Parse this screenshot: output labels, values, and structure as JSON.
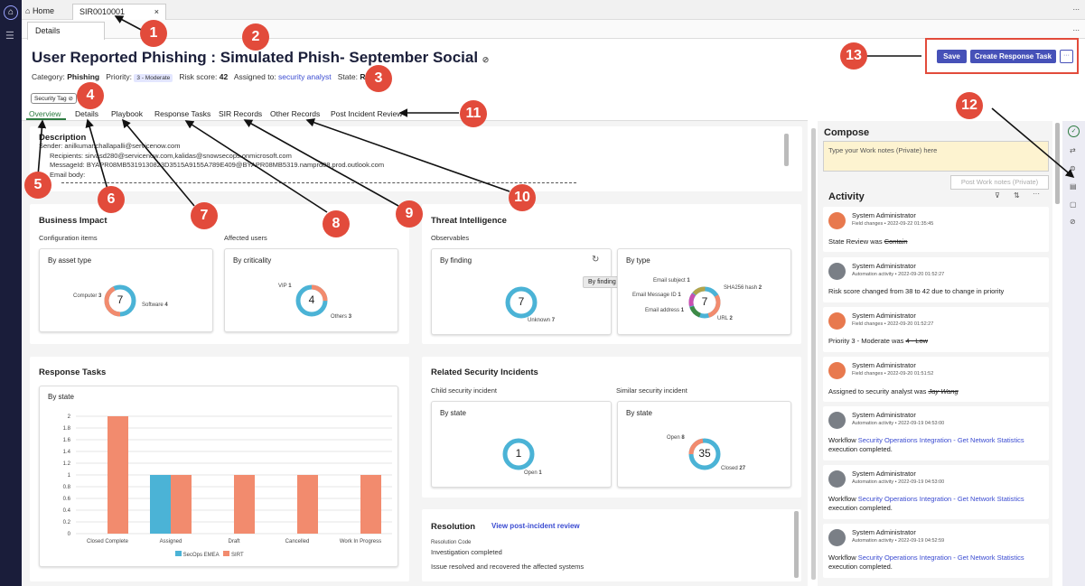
{
  "tabs": {
    "home": "Home",
    "record": "SIR0010001",
    "close": "×",
    "details": "Details",
    "more": "..."
  },
  "header": {
    "title": "User Reported Phishing : Simulated Phish- September Social",
    "category_label": "Category:",
    "category": "Phishing",
    "priority_label": "Priority:",
    "priority": "3 - Moderate",
    "risk_label": "Risk score:",
    "risk": "42",
    "assigned_label": "Assigned to:",
    "assigned": "security analyst",
    "state_label": "State:",
    "state": "Review",
    "tag": "Security Tag",
    "save": "Save",
    "create_task": "Create Response Task",
    "more": "···"
  },
  "record_tabs": [
    "Overview",
    "Details",
    "Playbook",
    "Response Tasks",
    "SIR Records",
    "Other Records",
    "Post Incident Review"
  ],
  "description": {
    "title": "Description",
    "line1": "Sender: anilkumar.challapalli@servicenow.com",
    "line2": "Recipients: sirvasd280@servicenow.com,kalidas@snowsecops.onmicrosoft.com",
    "line3": "MessageId: BYAPR08MB5319130823D3515A9155A789E409@BYAPR08MB5319.namprd08.prod.outlook.com",
    "line4": "Email body:"
  },
  "business_impact": {
    "title": "Business Impact",
    "config_label": "Configuration items",
    "users_label": "Affected users",
    "asset": {
      "title": "By asset type",
      "total": "7",
      "a_name": "Computer",
      "a_val": "3",
      "b_name": "Software",
      "b_val": "4"
    },
    "crit": {
      "title": "By criticality",
      "total": "4",
      "a_name": "VIP",
      "a_val": "1",
      "b_name": "Others",
      "b_val": "3"
    }
  },
  "threat": {
    "title": "Threat Intelligence",
    "obs_label": "Observables",
    "tooltip": "By finding",
    "finding": {
      "title": "By finding",
      "total": "7",
      "a_name": "Unknown",
      "a_val": "7"
    },
    "type": {
      "title": "By type",
      "total": "7",
      "s1": "Email subject",
      "v1": "1",
      "s2": "Email Message ID",
      "v2": "1",
      "s3": "Email address",
      "v3": "1",
      "s4": "SHA256 hash",
      "v4": "2",
      "s5": "URL",
      "v5": "2"
    }
  },
  "response_tasks": {
    "title": "Response Tasks",
    "card_title": "By state",
    "legend": [
      "SecOps EMEA",
      "SIRT"
    ]
  },
  "related": {
    "title": "Related Security Incidents",
    "child_label": "Child security incident",
    "similar_label": "Similar security incident",
    "child": {
      "title": "By state",
      "total": "1",
      "a_name": "Open",
      "a_val": "1"
    },
    "similar": {
      "title": "By state",
      "total": "35",
      "a_name": "Open",
      "a_val": "8",
      "b_name": "Closed",
      "b_val": "27"
    }
  },
  "resolution": {
    "title": "Resolution",
    "link": "View post-incident review",
    "code_label": "Resolution Code",
    "code": "Investigation completed",
    "notes": "Issue resolved and recovered the affected systems"
  },
  "compose": {
    "title": "Compose",
    "placeholder": "Type your Work notes (Private) here",
    "post": "Post Work notes (Private)"
  },
  "activity": {
    "title": "Activity",
    "items": [
      {
        "name": "System Administrator",
        "sub": "Field changes • 2022-09-22 01:35:45",
        "pre": "State  Review was ",
        "old": "Contain",
        "link": "",
        "post": ""
      },
      {
        "name": "System Administrator",
        "sub": "Automation activity • 2022-09-20 01:52:27",
        "pre": "Risk score changed from 38 to 42 due to change in priority",
        "old": "",
        "link": "",
        "post": ""
      },
      {
        "name": "System Administrator",
        "sub": "Field changes • 2022-09-20 01:52:27",
        "pre": "Priority  3 - Moderate was ",
        "old": "4 - Low",
        "link": "",
        "post": ""
      },
      {
        "name": "System Administrator",
        "sub": "Field changes • 2022-09-20 01:51:52",
        "pre": "Assigned to  security analyst was ",
        "old": "Jay Wang",
        "link": "",
        "post": ""
      },
      {
        "name": "System Administrator",
        "sub": "Automation activity • 2022-09-19 04:53:00",
        "pre": "Workflow ",
        "old": "",
        "link": "Security Operations Integration - Get Network Statistics",
        "post": "execution completed."
      },
      {
        "name": "System Administrator",
        "sub": "Automation activity • 2022-09-19 04:53:00",
        "pre": "Workflow ",
        "old": "",
        "link": "Security Operations Integration - Get Network Statistics",
        "post": "execution completed."
      },
      {
        "name": "System Administrator",
        "sub": "Automation activity • 2022-09-19 04:52:59",
        "pre": "Workflow ",
        "old": "",
        "link": "Security Operations Integration - Get Network Statistics",
        "post": "execution completed."
      }
    ]
  },
  "callouts": [
    "1",
    "2",
    "3",
    "4",
    "5",
    "6",
    "7",
    "8",
    "9",
    "10",
    "11",
    "12",
    "13"
  ],
  "colors": {
    "accent": "#4651b8",
    "callout": "#e24b3b",
    "blue": "#4bb3d6",
    "salmon": "#f28b6e",
    "brand": "#1a1d3a"
  },
  "chart_data": {
    "type": "bar",
    "title": "By state",
    "categories": [
      "Closed Complete",
      "Assigned",
      "Draft",
      "Cancelled",
      "Work In Progress"
    ],
    "series": [
      {
        "name": "SecOps EMEA",
        "values": [
          0,
          1,
          0,
          0,
          0
        ]
      },
      {
        "name": "SIRT",
        "values": [
          2,
          1,
          1,
          1,
          1
        ]
      }
    ],
    "yticks": [
      "0",
      "0.2",
      "0.4",
      "0.6",
      "0.8",
      "1",
      "1.2",
      "1.4",
      "1.6",
      "1.8",
      "2"
    ],
    "ylim": [
      0,
      2
    ],
    "grid": true,
    "legend": "bottom"
  }
}
